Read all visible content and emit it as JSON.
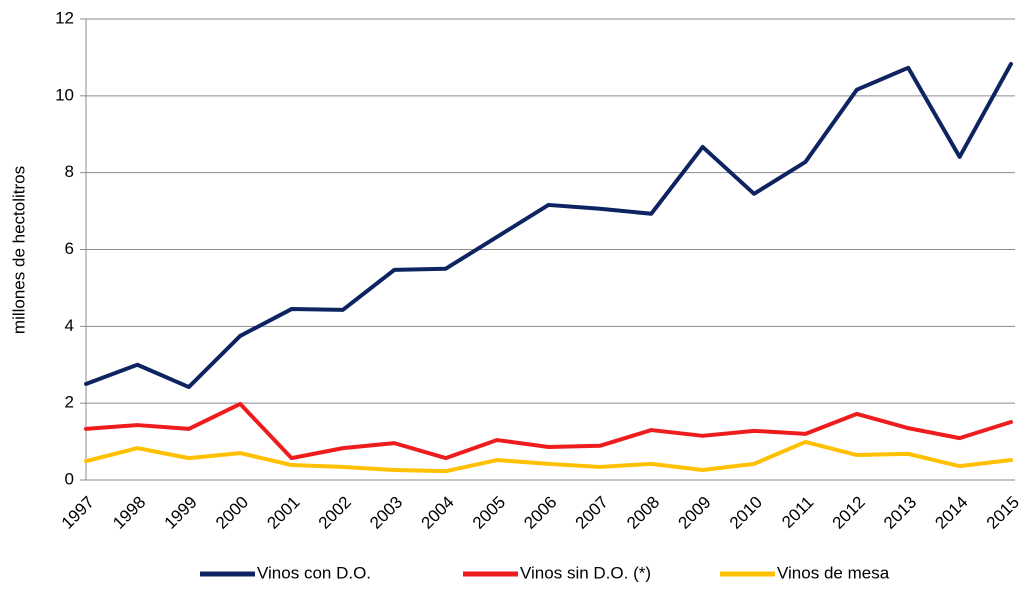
{
  "chart_data": {
    "type": "line",
    "y_label": "millones de hectolitros",
    "categories": [
      "1997",
      "1998",
      "1999",
      "2000",
      "2001",
      "2002",
      "2003",
      "2004",
      "2005",
      "2006",
      "2007",
      "2008",
      "2009",
      "2010",
      "2011",
      "2012",
      "2013",
      "2014",
      "2015"
    ],
    "series": [
      {
        "name": "Vinos con D.O.",
        "color": "#0d2461",
        "values": [
          2.5,
          3.0,
          2.42,
          3.75,
          4.45,
          4.43,
          5.47,
          5.5,
          6.33,
          7.16,
          7.06,
          6.93,
          8.67,
          7.45,
          8.28,
          10.16,
          10.73,
          8.41,
          10.83
        ]
      },
      {
        "name": "Vinos sin D.O. (*)",
        "color": "#ee1c1c",
        "values": [
          1.33,
          1.43,
          1.33,
          1.98,
          0.57,
          0.83,
          0.96,
          0.57,
          1.04,
          0.86,
          0.89,
          1.3,
          1.15,
          1.28,
          1.2,
          1.72,
          1.35,
          1.09,
          1.51
        ]
      },
      {
        "name": "Vinos de mesa",
        "color": "#ffc000",
        "values": [
          0.49,
          0.83,
          0.57,
          0.7,
          0.39,
          0.34,
          0.26,
          0.23,
          0.52,
          0.42,
          0.34,
          0.42,
          0.26,
          0.42,
          0.99,
          0.65,
          0.68,
          0.36,
          0.52
        ]
      }
    ],
    "ylim": [
      0,
      12
    ],
    "yticks": [
      0,
      2,
      4,
      6,
      8,
      10,
      12
    ],
    "grid": true,
    "legend": "bottom"
  }
}
